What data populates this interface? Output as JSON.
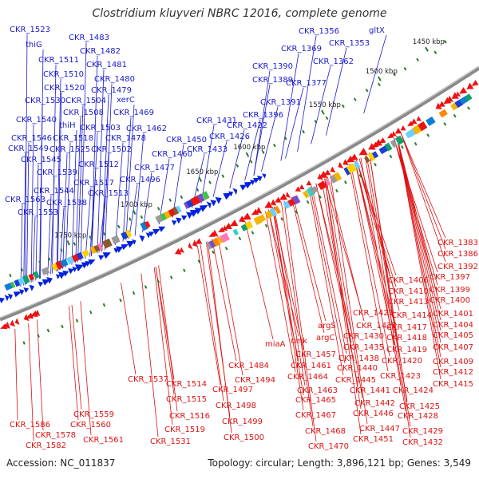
{
  "title": "Clostridium kluyveri NBRC 12016, complete genome",
  "accession": "Accession: NC_011837",
  "summary": "Topology: circular; Length: 3,896,121 bp; Genes: 3,549",
  "colors": {
    "backbone": "#8a8a8a",
    "plus_strand": "#0022dd",
    "minus_strand": "#ee1111",
    "tick": "#2a7a2a",
    "text": "#333333"
  },
  "ruler_ticks": [
    "1450 kbp",
    "1500 kbp",
    "1550 kbp",
    "1600 kbp",
    "1650 kbp",
    "1700 kbp",
    "1750 kbp"
  ],
  "plus_labels": [
    "CKR_1523",
    "thiG",
    "CKR_1511",
    "CKR_1510",
    "CKR_1520",
    "CKR_1530",
    "CKR_1504",
    "CKR_1508",
    "CKR_1540",
    "thiH",
    "CKR_1503",
    "CKR_1546",
    "CKR_1518",
    "CKR_1549",
    "CKR_1525",
    "CKR_1502",
    "CKR_1545",
    "CKR_1512",
    "CKR_1539",
    "CKR_1517",
    "CKR_1544",
    "CKR_1513",
    "CKR_1563",
    "CKR_1538",
    "CKR_1553",
    "CKR_1483",
    "CKR_1482",
    "CKR_1481",
    "CKR_1480",
    "CKR_1479",
    "xerC",
    "CKR_1469",
    "CKR_1462",
    "CKR_1478",
    "CKR_1477",
    "CKR_1496",
    "CKR_1460",
    "CKR_1450",
    "CKR_1431",
    "CKR_1433",
    "CKR_1426",
    "CKR_1422",
    "CKR_1396",
    "CKR_1391",
    "CKR_1390",
    "CKR_1389",
    "CKR_1369",
    "CKR_1377",
    "CKR_1356",
    "CKR_1362",
    "CKR_1353",
    "gltX"
  ],
  "minus_labels": [
    "CKR_1383",
    "CKR_1386",
    "CKR_1392",
    "CKR_1397",
    "CKR_1406",
    "CKR_1399",
    "CKR_1410",
    "CKR_1400",
    "CKR_1413",
    "CKR_1401",
    "CKR_1414",
    "CKR_1404",
    "CKR_1421",
    "CKR_1417",
    "CKR_1405",
    "CKR_1427",
    "CKR_1418",
    "CKR_1407",
    "argS",
    "CKR_1430",
    "CKR_1419",
    "argC",
    "CKR_1435",
    "cmk",
    "CKR_1438",
    "CKR_1420",
    "CKR_1409",
    "miaA",
    "CKR_1457",
    "CKR_1440",
    "CKR_1412",
    "CKR_1461",
    "CKR_1423",
    "CKR_1415",
    "CKR_1464",
    "CKR_1445",
    "CKR_1484",
    "CKR_1463",
    "CKR_1441",
    "CKR_1424",
    "CKR_1465",
    "CKR_1442",
    "CKR_1425",
    "CKR_1537",
    "CKR_1494",
    "CKR_1446",
    "CKR_1428",
    "CKR_1514",
    "CKR_1497",
    "CKR_1467",
    "CKR_1515",
    "CKR_1498",
    "CKR_1447",
    "CKR_1429",
    "CKR_1516",
    "CKR_1499",
    "CKR_1468",
    "CKR_1451",
    "CKR_1432",
    "CKR_1519",
    "CKR_1500",
    "CKR_1470",
    "CKR_1531",
    "CKR_1559",
    "CKR_1586",
    "CKR_1560",
    "CKR_1578",
    "CKR_1561",
    "CKR_1582"
  ]
}
